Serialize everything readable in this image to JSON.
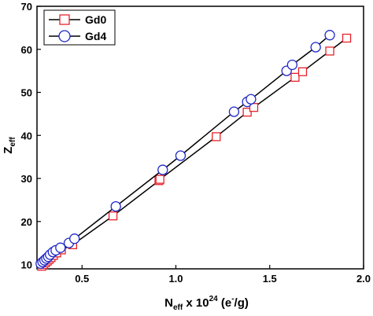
{
  "chart_data": {
    "type": "line",
    "xlabel": {
      "main": "N",
      "sub": "eff",
      "mid": " x 10",
      "sup": "24",
      "unit_open": " (e",
      "unit_sup": "-",
      "unit_close": "/g)"
    },
    "ylabel": {
      "main": "Z",
      "sub": "eff"
    },
    "xlim": [
      0.26,
      2.0
    ],
    "ylim": [
      9,
      70
    ],
    "x_ticks": [
      0.5,
      1.0,
      1.5,
      2.0
    ],
    "x_tick_labels": [
      "0.5",
      "1.0",
      "1.5",
      "2.0"
    ],
    "y_ticks": [
      10,
      20,
      30,
      40,
      50,
      60,
      70
    ],
    "y_tick_labels": [
      "10",
      "20",
      "30",
      "40",
      "50",
      "60",
      "70"
    ],
    "legend_position": "top-left",
    "series": [
      {
        "name": "Gd0",
        "marker": "square",
        "color": "#e8222a",
        "x": [
          0.285,
          0.295,
          0.305,
          0.315,
          0.325,
          0.335,
          0.348,
          0.365,
          0.39,
          0.45,
          0.665,
          0.91,
          0.915,
          1.215,
          1.38,
          1.415,
          1.635,
          1.675,
          1.82,
          1.91
        ],
        "y": [
          9.6,
          10.0,
          10.4,
          10.8,
          11.2,
          11.6,
          12.1,
          12.7,
          13.4,
          14.6,
          21.3,
          29.5,
          29.8,
          39.7,
          45.4,
          46.5,
          53.5,
          54.8,
          59.6,
          62.6
        ]
      },
      {
        "name": "Gd4",
        "marker": "circle",
        "color": "#1f27c8",
        "x": [
          0.28,
          0.29,
          0.3,
          0.31,
          0.32,
          0.33,
          0.345,
          0.36,
          0.385,
          0.43,
          0.46,
          0.68,
          0.93,
          1.025,
          1.31,
          1.38,
          1.4,
          1.59,
          1.62,
          1.745,
          1.82
        ],
        "y": [
          10.2,
          10.6,
          11.0,
          11.4,
          11.8,
          12.3,
          12.9,
          13.3,
          13.9,
          15.0,
          16.0,
          23.5,
          32.0,
          35.3,
          45.5,
          47.8,
          48.4,
          55.0,
          56.4,
          60.5,
          63.3
        ]
      }
    ]
  }
}
